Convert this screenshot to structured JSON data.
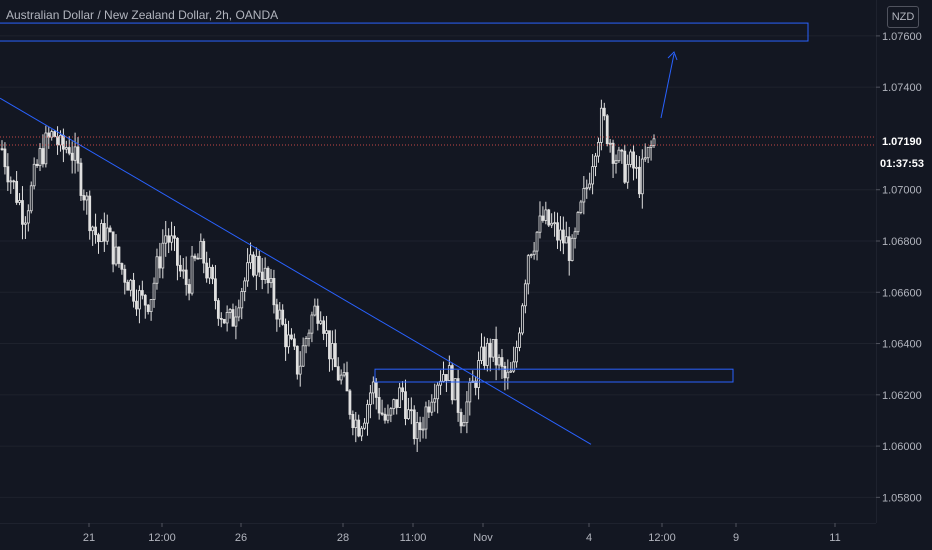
{
  "header": {
    "title": "Australian Dollar / New Zealand Dollar, 2h, OANDA",
    "currency": "NZD"
  },
  "price_axis": {
    "ticks": [
      "1.07600",
      "1.07400",
      "1.07190",
      "1.07000",
      "1.06800",
      "1.06600",
      "1.06400",
      "1.06200",
      "1.06000",
      "1.05800"
    ],
    "last_price": "1.07190",
    "countdown": "01:37:53"
  },
  "time_axis": {
    "ticks": [
      "21",
      "12:00",
      "26",
      "28",
      "11:00",
      "Nov",
      "4",
      "12:00",
      "9",
      "11"
    ]
  },
  "colors": {
    "background": "#131722",
    "candle": "#e0e0e0",
    "annotation": "#2962ff",
    "price_line": "#ef5350",
    "axis_text": "#b2b5be"
  },
  "chart_data": {
    "type": "candlestick",
    "title": "Australian Dollar / New Zealand Dollar, 2h, OANDA",
    "xlabel": "",
    "ylabel": "",
    "ylim": [
      1.057,
      1.0774
    ],
    "close_path": [
      1.0716,
      1.0706,
      1.0698,
      1.069,
      1.07,
      1.0712,
      1.0718,
      1.0722,
      1.0715,
      1.0718,
      1.071,
      1.07,
      1.0688,
      1.068,
      1.0685,
      1.0676,
      1.067,
      1.0665,
      1.066,
      1.0656,
      1.0658,
      1.067,
      1.0683,
      1.0678,
      1.0668,
      1.0663,
      1.0671,
      1.0675,
      1.0665,
      1.0656,
      1.065,
      1.0648,
      1.066,
      1.0666,
      1.0672,
      1.067,
      1.0662,
      1.0655,
      1.0645,
      1.0638,
      1.063,
      1.0642,
      1.0652,
      1.0655,
      1.064,
      1.063,
      1.0625,
      1.0615,
      1.0608,
      1.0614,
      1.0624,
      1.0615,
      1.0608,
      1.0616,
      1.0622,
      1.061,
      1.0604,
      1.0612,
      1.0622,
      1.0628,
      1.063,
      1.0622,
      1.0612,
      1.0618,
      1.0628,
      1.0635,
      1.0638,
      1.0632,
      1.0625,
      1.0628,
      1.0652,
      1.0676,
      1.0682,
      1.0688,
      1.0686,
      1.0682,
      1.068,
      1.0675,
      1.069,
      1.0702,
      1.0718,
      1.0728,
      1.072,
      1.0712,
      1.0708,
      1.071,
      1.0703,
      1.0712,
      1.0719
    ],
    "annotations": {
      "resistance_zone": [
        1.0758,
        1.0765
      ],
      "support_zone": [
        1.0625,
        1.063
      ],
      "current_price": 1.0719,
      "trendline_start": [
        "Oct 19",
        1.07357
      ],
      "trendline_end": [
        "Nov 3",
        1.06007
      ],
      "arrow": "up"
    }
  }
}
